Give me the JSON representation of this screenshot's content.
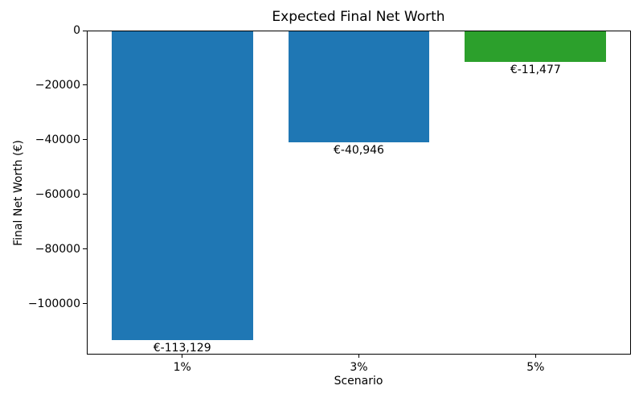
{
  "chart_data": {
    "type": "bar",
    "title": "Expected Final Net Worth",
    "xlabel": "Scenario",
    "ylabel": "Final Net Worth (€)",
    "categories": [
      "1%",
      "3%",
      "5%"
    ],
    "values": [
      -113129,
      -40946,
      -11477
    ],
    "bar_labels": [
      "€-113,129",
      "€-40,946",
      "€-11,477"
    ],
    "bar_colors": [
      "#1f77b4",
      "#1f77b4",
      "#2ca02c"
    ],
    "ylim": [
      -118530,
      0
    ],
    "yticks": [
      0,
      -20000,
      -40000,
      -60000,
      -80000,
      -100000
    ],
    "ytick_labels": [
      "0",
      "−20000",
      "−40000",
      "−60000",
      "−80000",
      "−100000"
    ],
    "bar_width_fraction": 0.8,
    "x_margin": 0.14,
    "grid": false,
    "legend": "none",
    "spine_color": "#000000",
    "background_color": "#ffffff"
  }
}
